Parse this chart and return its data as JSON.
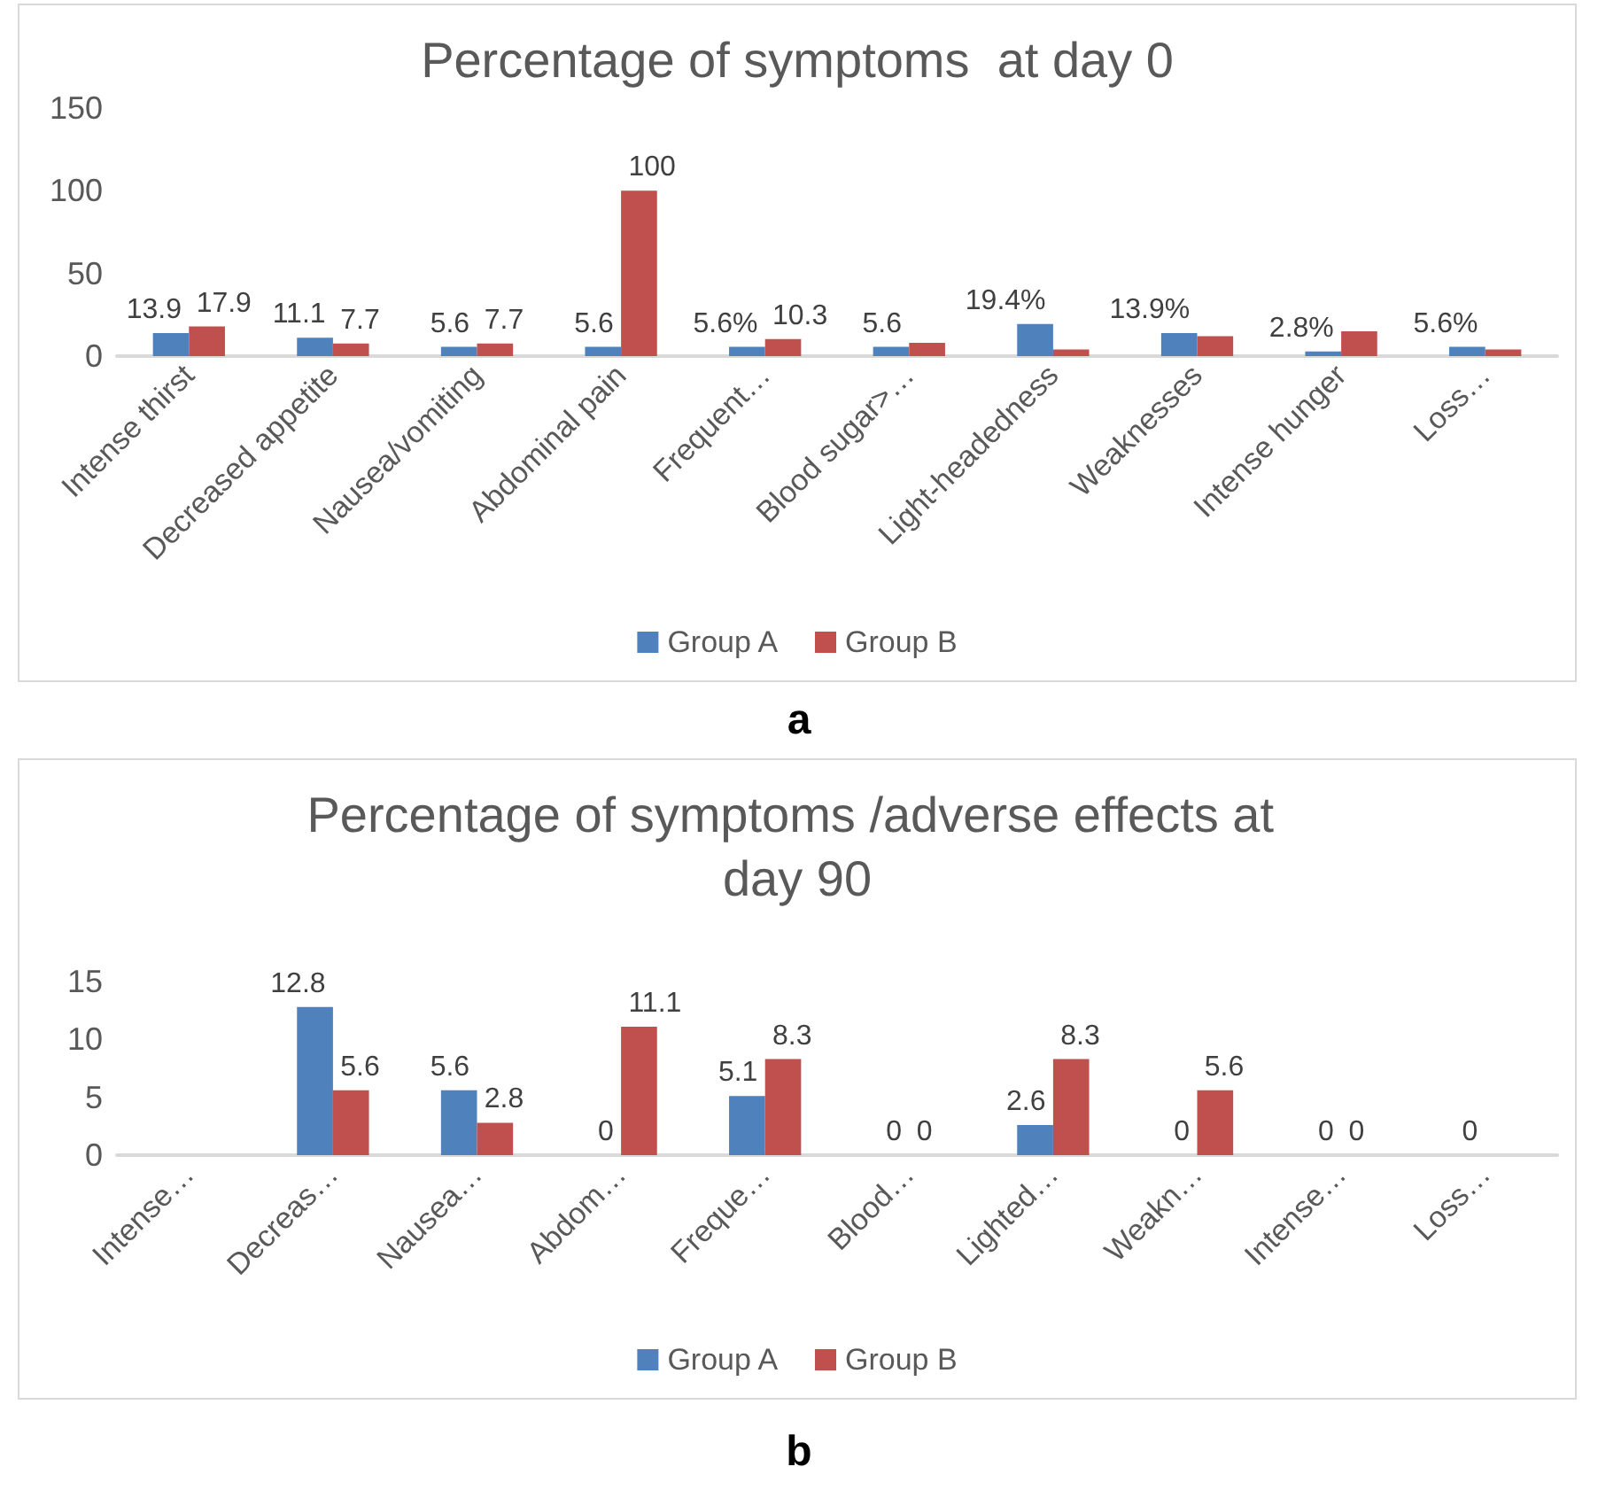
{
  "chart_data": [
    {
      "type": "bar",
      "title": "Percentage of symptoms  at day 0",
      "categories": [
        "Intense thirst",
        "Decreased appetite",
        "Nausea/vomiting",
        "Abdominal pain",
        "Frequent…",
        "Blood sugar>…",
        "Light-headedness",
        "Weaknesses",
        "Intense hunger",
        "Loss…"
      ],
      "series": [
        {
          "name": "Group A",
          "color": "#4f81bd",
          "values": [
            13.9,
            11.1,
            5.6,
            5.6,
            5.6,
            5.6,
            19.4,
            13.9,
            2.8,
            5.6
          ],
          "value_labels": [
            "13.9",
            "11.1",
            "5.6",
            "5.6",
            "5.6%",
            "5.6",
            "19.4%",
            "13.9%",
            "2.8%",
            "5.6%"
          ]
        },
        {
          "name": "Group B",
          "color": "#c0504d",
          "values": [
            17.9,
            7.7,
            7.7,
            100,
            10.3,
            8,
            4,
            12,
            15,
            4
          ],
          "value_labels": [
            "17.9",
            "7.7",
            "7.7",
            "100",
            "10.3",
            null,
            null,
            null,
            null,
            null
          ]
        }
      ],
      "ylim": [
        0,
        150
      ],
      "yticks": [
        0,
        50,
        100,
        150
      ],
      "grid": false,
      "legend": "bottom",
      "annotations": [
        "a"
      ]
    },
    {
      "type": "bar",
      "title": "Percentage of symptoms /adverse effects at day 90",
      "categories": [
        "Intense…",
        "Decreas…",
        "Nausea…",
        "Abdom…",
        "Freque…",
        "Blood…",
        "Lighted…",
        "Weakn…",
        "Intense…",
        "Loss…"
      ],
      "series": [
        {
          "name": "Group A",
          "color": "#4f81bd",
          "values": [
            null,
            12.8,
            5.6,
            0,
            5.1,
            0,
            2.6,
            0,
            0,
            0
          ]
        },
        {
          "name": "Group B",
          "color": "#c0504d",
          "values": [
            null,
            5.6,
            2.8,
            11.1,
            8.3,
            0,
            8.3,
            5.6,
            0,
            null
          ]
        }
      ],
      "ylim": [
        0,
        15
      ],
      "yticks": [
        0,
        5,
        10,
        15
      ],
      "grid": false,
      "legend": "bottom",
      "data_labels": true,
      "annotations": [
        "b"
      ]
    }
  ]
}
